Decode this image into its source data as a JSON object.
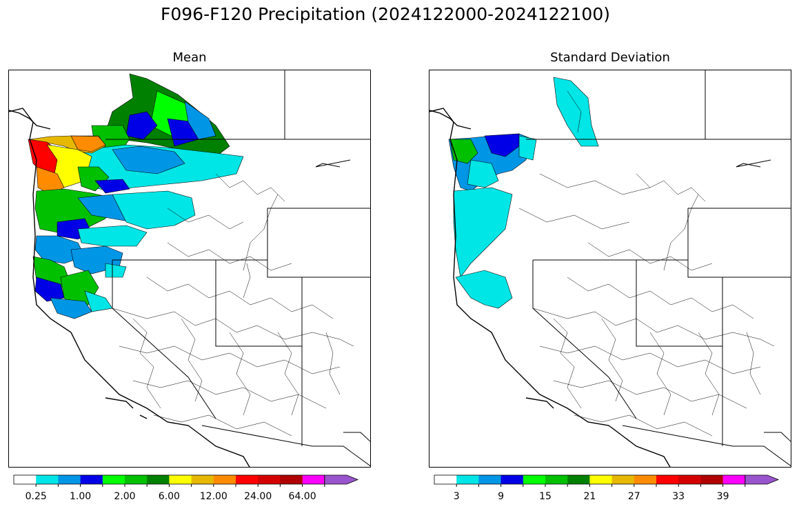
{
  "figure": {
    "title": "F096-F120 Precipitation (2024122000-2024122100)"
  },
  "panels": [
    {
      "title": "Mean",
      "colorbar_ticks": [
        "0.25",
        "1.00",
        "2.00",
        "6.00",
        "12.00",
        "24.00",
        "64.00"
      ]
    },
    {
      "title": "Standard Deviation",
      "colorbar_ticks": [
        "3",
        "9",
        "15",
        "21",
        "27",
        "33",
        "39"
      ]
    }
  ],
  "colorbar": {
    "colors": [
      "#ffffff",
      "#00e5e5",
      "#0096e6",
      "#0000e6",
      "#00ff00",
      "#00c000",
      "#008000",
      "#ffff00",
      "#e6b800",
      "#ff8c00",
      "#ff0000",
      "#d40000",
      "#b00000",
      "#ff00ff",
      "#9955cc"
    ],
    "extend": "max"
  },
  "map": {
    "region": "Western United States",
    "basemap_lines": "#000000"
  }
}
